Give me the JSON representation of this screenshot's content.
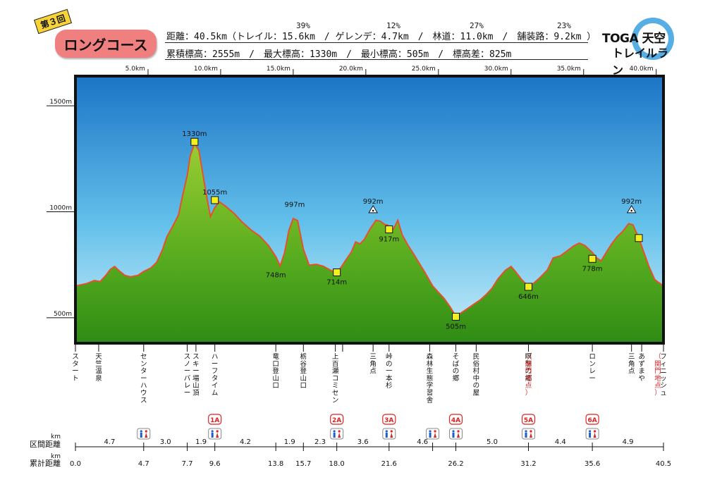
{
  "header": {
    "badge": "第３回",
    "course": "ロングコース",
    "line1": "距離：40.5km（トレイル：15.6km　/ ゲレンデ：4.7km　/　林道：11.0km　/　舗装路：9.2km ）",
    "line2": "累積標高：2555m　/　最大標高：1330m　/　最小標高：505m　/　標高差：825m",
    "pcts": [
      "39%",
      "12%",
      "27%",
      "23%"
    ]
  },
  "logo": {
    "line1": "TOGA 天空",
    "line2": "トレイルラン"
  },
  "chart_data": {
    "type": "area",
    "title": "",
    "x_ticks": [
      "5.0km",
      "10.0km",
      "15.0km",
      "20.0km",
      "25.0km",
      "30.0km",
      "35.0km",
      "40.0km"
    ],
    "x_tick_values": [
      5,
      10,
      15,
      20,
      25,
      30,
      35,
      40
    ],
    "y_ticks": [
      "500m",
      "1000m",
      "1500m"
    ],
    "y_tick_values": [
      500,
      1000,
      1500
    ],
    "xlim": [
      0,
      40.5
    ],
    "ylim": [
      380,
      1640
    ],
    "grid": false,
    "profile": [
      [
        0,
        650
      ],
      [
        0.8,
        662
      ],
      [
        1.3,
        676
      ],
      [
        1.7,
        671
      ],
      [
        2.1,
        700
      ],
      [
        2.4,
        728
      ],
      [
        2.7,
        742
      ],
      [
        3.0,
        722
      ],
      [
        3.4,
        700
      ],
      [
        3.8,
        693
      ],
      [
        4.3,
        700
      ],
      [
        4.7,
        718
      ],
      [
        5.2,
        735
      ],
      [
        5.6,
        762
      ],
      [
        6.0,
        822
      ],
      [
        6.3,
        882
      ],
      [
        6.7,
        932
      ],
      [
        7.1,
        985
      ],
      [
        7.4,
        1082
      ],
      [
        7.7,
        1172
      ],
      [
        7.9,
        1262
      ],
      [
        8.2,
        1322
      ],
      [
        8.5,
        1290
      ],
      [
        8.8,
        1168
      ],
      [
        9.1,
        1048
      ],
      [
        9.3,
        977
      ],
      [
        9.6,
        1020
      ],
      [
        9.9,
        1047
      ],
      [
        10.3,
        1028
      ],
      [
        10.9,
        994
      ],
      [
        11.5,
        950
      ],
      [
        12.1,
        914
      ],
      [
        12.7,
        885
      ],
      [
        13.3,
        840
      ],
      [
        13.8,
        788
      ],
      [
        14.1,
        745
      ],
      [
        14.4,
        806
      ],
      [
        14.7,
        912
      ],
      [
        15.0,
        968
      ],
      [
        15.3,
        958
      ],
      [
        15.7,
        823
      ],
      [
        16.1,
        748
      ],
      [
        16.6,
        752
      ],
      [
        17.1,
        742
      ],
      [
        17.6,
        723
      ],
      [
        18.0,
        713
      ],
      [
        18.3,
        738
      ],
      [
        18.6,
        770
      ],
      [
        19.0,
        810
      ],
      [
        19.3,
        858
      ],
      [
        19.6,
        848
      ],
      [
        19.9,
        870
      ],
      [
        20.3,
        920
      ],
      [
        20.7,
        960
      ],
      [
        21.0,
        955
      ],
      [
        21.3,
        940
      ],
      [
        21.5,
        938
      ],
      [
        21.7,
        912
      ],
      [
        21.9,
        918
      ],
      [
        22.2,
        960
      ],
      [
        22.5,
        892
      ],
      [
        22.9,
        842
      ],
      [
        23.3,
        800
      ],
      [
        23.7,
        755
      ],
      [
        24.1,
        710
      ],
      [
        24.6,
        650
      ],
      [
        25.0,
        620
      ],
      [
        25.4,
        590
      ],
      [
        25.8,
        552
      ],
      [
        26.2,
        506
      ],
      [
        26.6,
        525
      ],
      [
        27.0,
        543
      ],
      [
        27.5,
        567
      ],
      [
        27.9,
        585
      ],
      [
        28.3,
        610
      ],
      [
        28.7,
        640
      ],
      [
        29.1,
        683
      ],
      [
        29.6,
        723
      ],
      [
        30.0,
        742
      ],
      [
        30.3,
        718
      ],
      [
        30.7,
        683
      ],
      [
        31.2,
        646
      ],
      [
        31.6,
        665
      ],
      [
        32.0,
        690
      ],
      [
        32.5,
        725
      ],
      [
        32.9,
        782
      ],
      [
        33.4,
        792
      ],
      [
        33.8,
        812
      ],
      [
        34.3,
        838
      ],
      [
        34.7,
        852
      ],
      [
        35.1,
        840
      ],
      [
        35.6,
        808
      ],
      [
        35.9,
        782
      ],
      [
        36.2,
        768
      ],
      [
        36.5,
        802
      ],
      [
        36.9,
        845
      ],
      [
        37.3,
        882
      ],
      [
        37.7,
        908
      ],
      [
        38.1,
        944
      ],
      [
        38.4,
        938
      ],
      [
        38.8,
        876
      ],
      [
        39.1,
        818
      ],
      [
        39.5,
        742
      ],
      [
        39.9,
        680
      ],
      [
        40.5,
        650
      ]
    ],
    "peak_labels": [
      {
        "km": 8.2,
        "elev": 1330,
        "label": "1330m",
        "marker": "square",
        "pos": "above"
      },
      {
        "km": 9.6,
        "elev": 1055,
        "label": "1055m",
        "marker": "square",
        "pos": "above"
      },
      {
        "km": 15.1,
        "elev": 997,
        "label": "997m",
        "marker": "none",
        "pos": "above"
      },
      {
        "km": 13.8,
        "elev": 748,
        "label": "748m",
        "marker": "none",
        "pos": "below"
      },
      {
        "km": 18.0,
        "elev": 714,
        "label": "714m",
        "marker": "square",
        "pos": "below"
      },
      {
        "km": 20.5,
        "elev": 992,
        "label": "992m",
        "marker": "triangle",
        "pos": "above"
      },
      {
        "km": 21.6,
        "elev": 917,
        "label": "917m",
        "marker": "square",
        "pos": "below"
      },
      {
        "km": 26.2,
        "elev": 505,
        "label": "505m",
        "marker": "square",
        "pos": "below"
      },
      {
        "km": 31.2,
        "elev": 646,
        "label": "646m",
        "marker": "square",
        "pos": "below"
      },
      {
        "km": 35.6,
        "elev": 778,
        "label": "778m",
        "marker": "square",
        "pos": "below"
      },
      {
        "km": 38.3,
        "elev": 992,
        "label": "992m",
        "marker": "triangle",
        "pos": "above"
      },
      {
        "km": 38.8,
        "elev": 876,
        "label": "",
        "marker": "square",
        "pos": "none"
      }
    ],
    "landmarks": [
      {
        "km": 0.0,
        "name": "スタート",
        "sub": ""
      },
      {
        "km": 1.6,
        "name": "天竺温泉",
        "sub": ""
      },
      {
        "km": 4.7,
        "name": "センターハウス",
        "sub": ""
      },
      {
        "km": 7.7,
        "name": "スノーバレー",
        "sub": ""
      },
      {
        "km": 8.3,
        "name": "スキー場山頂",
        "sub": ""
      },
      {
        "km": 9.6,
        "name": "ハーフタイム",
        "sub": ""
      },
      {
        "km": 13.8,
        "name": "竜口登山口",
        "sub": ""
      },
      {
        "km": 15.7,
        "name": "栃谷登山口",
        "sub": ""
      },
      {
        "km": 17.9,
        "name": "上百瀬コミセン",
        "sub": ""
      },
      {
        "km": 18.4,
        "name": "",
        "sub": ""
      },
      {
        "km": 20.5,
        "name": "三角点",
        "sub": ""
      },
      {
        "km": 21.6,
        "name": "峠の一本杉",
        "sub": ""
      },
      {
        "km": 24.4,
        "name": "森林生態学習舎",
        "sub": ""
      },
      {
        "km": 26.2,
        "name": "そばの郷",
        "sub": ""
      },
      {
        "km": 27.6,
        "name": "民俗村中の屋",
        "sub": ""
      },
      {
        "km": 31.2,
        "name": "瞑想の郷",
        "sub": "（関門地点）"
      },
      {
        "km": 35.6,
        "name": "ロンレー",
        "sub": ""
      },
      {
        "km": 38.3,
        "name": "三角点",
        "sub": ""
      },
      {
        "km": 39.0,
        "name": "あずまや",
        "sub": ""
      },
      {
        "km": 40.5,
        "name": "フィニッシュ",
        "sub": "（関門地点）"
      }
    ],
    "aid_stations": [
      {
        "km": 9.6,
        "label": "1A"
      },
      {
        "km": 18.0,
        "label": "2A"
      },
      {
        "km": 21.6,
        "label": "3A"
      },
      {
        "km": 26.2,
        "label": "4A"
      },
      {
        "km": 31.2,
        "label": "5A"
      },
      {
        "km": 35.6,
        "label": "6A"
      }
    ],
    "toilets": [
      4.7,
      9.6,
      18.0,
      21.6,
      24.6,
      26.2,
      31.2,
      35.6
    ],
    "section_label": "区間距離",
    "cumulative_label": "累計距離",
    "unit": "km",
    "checkpoints": [
      0.0,
      4.7,
      7.7,
      9.6,
      13.8,
      15.7,
      18.0,
      21.6,
      26.2,
      31.2,
      35.6,
      40.5
    ],
    "checkpoint_labels": [
      "0.0",
      "4.7",
      "7.7",
      "9.6",
      "13.8",
      "15.7",
      "18.0",
      "21.6",
      "26.2",
      "31.2",
      "35.6",
      "40.5"
    ],
    "extra_ticks": [
      24.6
    ],
    "sections": [
      {
        "mid": 2.35,
        "label": "4.7"
      },
      {
        "mid": 6.2,
        "label": "3.0"
      },
      {
        "mid": 8.65,
        "label": "1.9"
      },
      {
        "mid": 11.7,
        "label": "4.2"
      },
      {
        "mid": 14.75,
        "label": "1.9"
      },
      {
        "mid": 16.85,
        "label": "2.3"
      },
      {
        "mid": 19.8,
        "label": "3.6"
      },
      {
        "mid": 23.9,
        "label": "4.6"
      },
      {
        "mid": 28.7,
        "label": "5.0"
      },
      {
        "mid": 33.4,
        "label": "4.4"
      },
      {
        "mid": 38.05,
        "label": "4.9"
      }
    ]
  }
}
